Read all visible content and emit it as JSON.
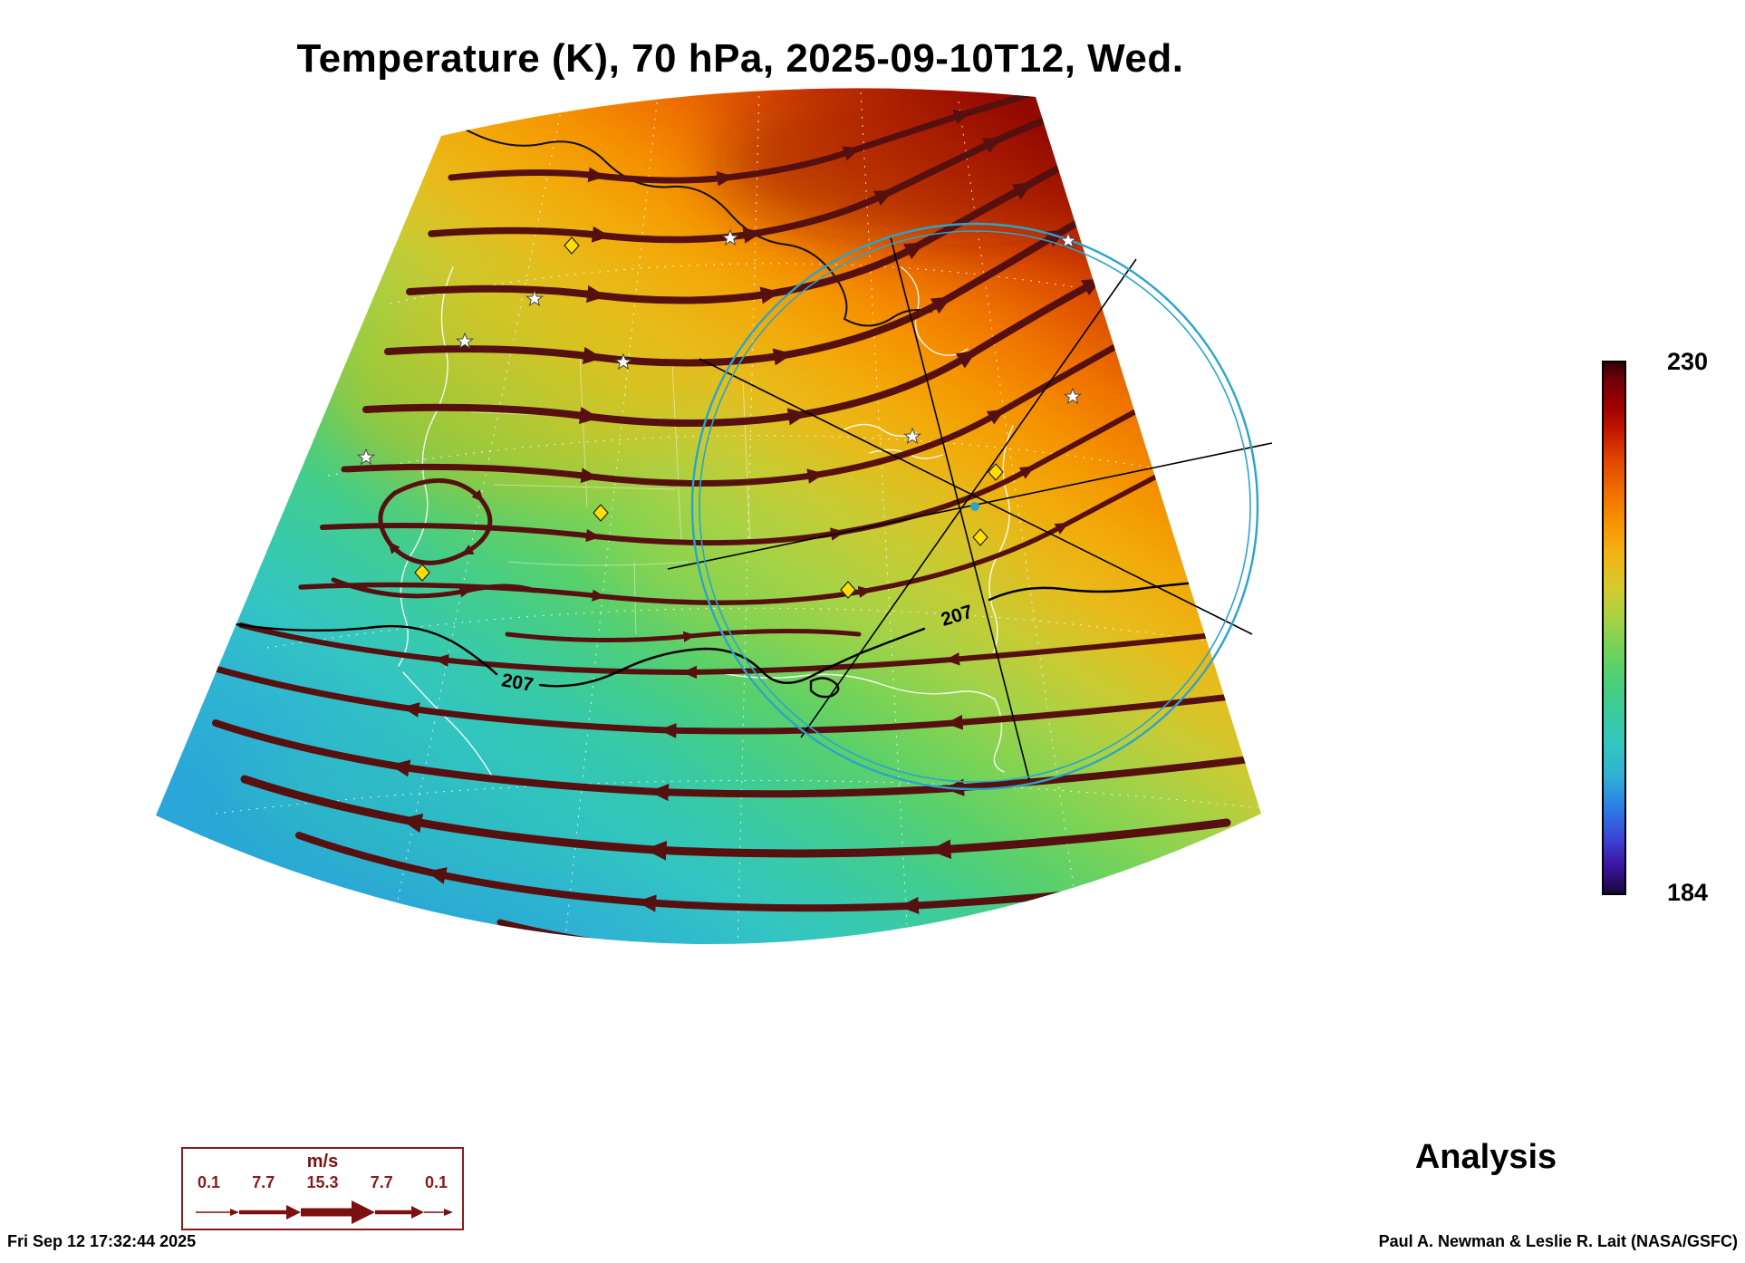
{
  "title": "Temperature (K), 70 hPa, 2025-09-10T12, Wed.",
  "map": {
    "contour_label": "207"
  },
  "colorbar": {
    "max_label": "230",
    "min_label": "184"
  },
  "wind_legend": {
    "units": "m/s",
    "values": [
      "0.1",
      "7.7",
      "15.3",
      "7.7",
      "0.1"
    ]
  },
  "analysis_label": "Analysis",
  "footer": {
    "timestamp": "Fri Sep 12 17:32:44 2025",
    "credit": "Paul A. Newman & Leslie R. Lait (NASA/GSFC)"
  },
  "chart_data": {
    "type": "heatmap",
    "title": "Temperature (K), 70 hPa, 2025-09-10T12, Wed.",
    "variable": "Temperature",
    "units": "K",
    "pressure_level": "70 hPa",
    "valid_time": "2025-09-10T12",
    "weekday": "Wed.",
    "colorbar_range": [
      184,
      230
    ],
    "colorbar_tick_labels": [
      "230",
      "184"
    ],
    "contour_levels_shown": [
      207
    ],
    "contour_label_occurrences": 2,
    "wind_speed_legend_mps": [
      0.1,
      7.7,
      15.3,
      7.7,
      0.1
    ],
    "wind_legend_units": "m/s",
    "product": "Analysis",
    "projection": "conic fan-shaped map over North America",
    "temperature_pattern": "warm (up to ~230 K, dark red) in the north/top of the map grading to cold (~184 K scale minimum, cyan/teal ~200 K shown) in the south/bottom",
    "overlays": [
      "dark-red wind streamlines with arrowheads (eastward flow in north, westward flow in south)",
      "black temperature contour labeled 207",
      "cyan range circle with crossing black great-circle lines centered near the Great Lakes",
      "yellow diamond station markers",
      "white star station markers",
      "white coastlines, state boundaries and dashed graticule"
    ],
    "generated_timestamp": "Fri Sep 12 17:32:44 2025",
    "credit": "Paul A. Newman & Leslie R. Lait (NASA/GSFC)"
  }
}
